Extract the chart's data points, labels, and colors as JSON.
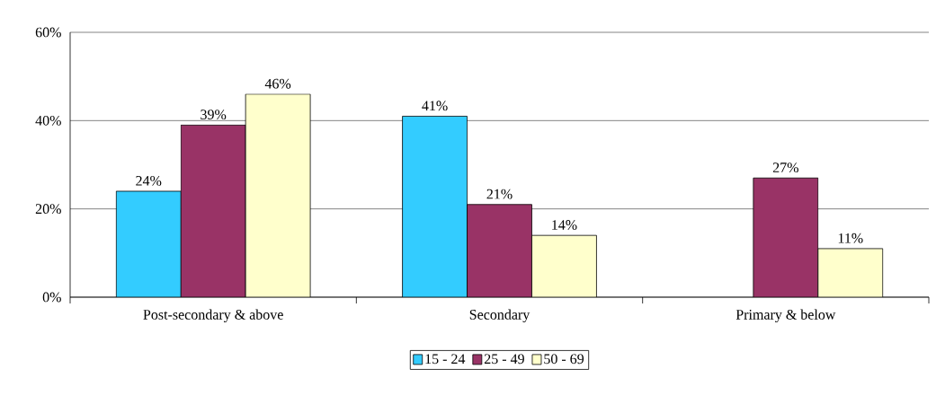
{
  "chart_data": {
    "type": "bar",
    "categories": [
      "Post-secondary & above",
      "Secondary",
      "Primary & below"
    ],
    "series": [
      {
        "name": "15 - 24",
        "color": "#33ccff",
        "values": [
          24,
          41,
          null
        ],
        "value_labels": [
          "24%",
          "41%",
          null
        ]
      },
      {
        "name": "25 - 49",
        "color": "#993366",
        "values": [
          39,
          21,
          27
        ],
        "value_labels": [
          "39%",
          "21%",
          "27%"
        ]
      },
      {
        "name": "50 - 69",
        "color": "#ffffcc",
        "values": [
          46,
          14,
          11
        ],
        "value_labels": [
          "46%",
          "14%",
          "11%"
        ]
      }
    ],
    "ylim": [
      0,
      60
    ],
    "yticks": [
      {
        "value": 0,
        "label": "0%"
      },
      {
        "value": 20,
        "label": "20%"
      },
      {
        "value": 40,
        "label": "40%"
      },
      {
        "value": 60,
        "label": "60%"
      }
    ],
    "grid": "y",
    "legend": "bottom"
  }
}
